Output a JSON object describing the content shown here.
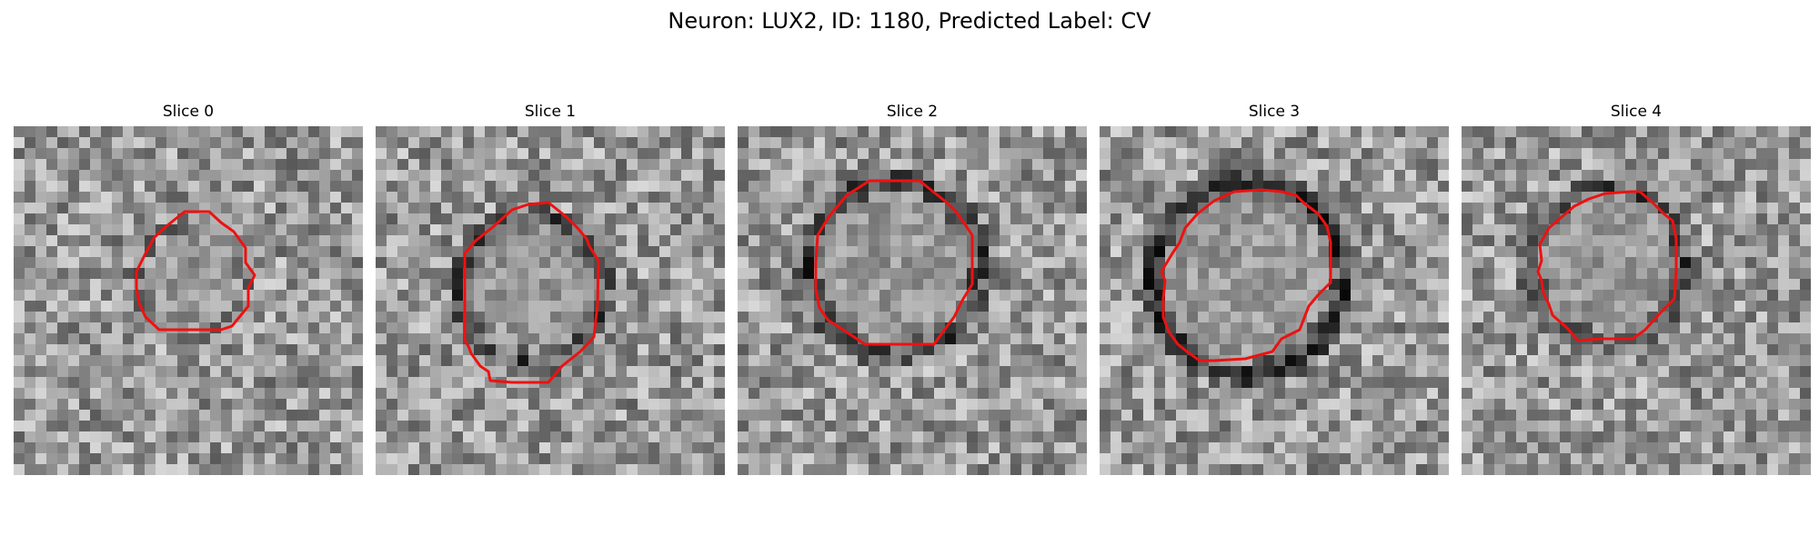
{
  "figure": {
    "title": "Neuron: LUX2, ID: 1180, Predicted Label: CV"
  },
  "panels": [
    {
      "label": "Slice 0",
      "seed": 11,
      "ring_strength": 0.25
    },
    {
      "label": "Slice 1",
      "seed": 23,
      "ring_strength": 0.6
    },
    {
      "label": "Slice 2",
      "seed": 37,
      "ring_strength": 0.75
    },
    {
      "label": "Slice 3",
      "seed": 41,
      "ring_strength": 0.95
    },
    {
      "label": "Slice 4",
      "seed": 53,
      "ring_strength": 0.6
    }
  ],
  "contour_color": "#ee1111",
  "colormap": "gray"
}
